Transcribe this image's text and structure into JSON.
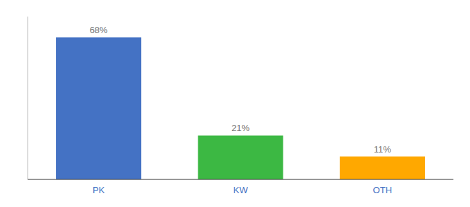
{
  "chart_data": {
    "type": "bar",
    "categories": [
      "PK",
      "KW",
      "OTH"
    ],
    "values": [
      68,
      21,
      11
    ],
    "value_labels": [
      "68%",
      "21%",
      "11%"
    ],
    "colors": [
      "#4472C4",
      "#3CB843",
      "#FFA800"
    ],
    "ylim": [
      0,
      78
    ],
    "grid": false,
    "data_labels": true,
    "tick_labels": "x"
  }
}
